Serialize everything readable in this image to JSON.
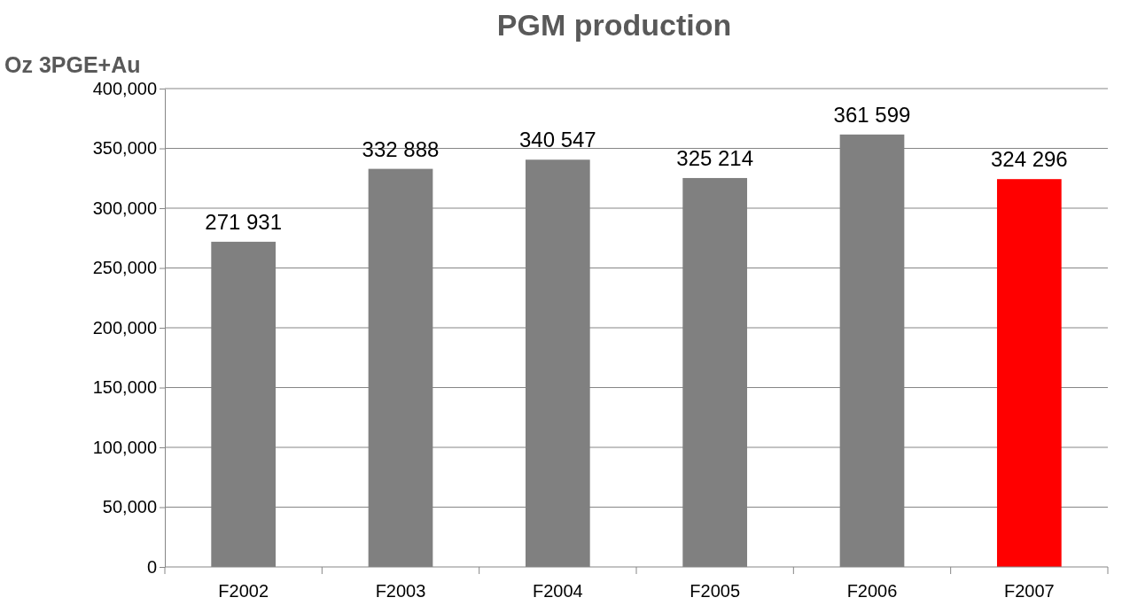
{
  "chart_data": {
    "type": "bar",
    "title": "PGM production",
    "ylabel": "Oz 3PGE+Au",
    "categories": [
      "F2002",
      "F2003",
      "F2004",
      "F2005",
      "F2006",
      "F2007"
    ],
    "values": [
      271931,
      332888,
      340547,
      325214,
      361599,
      324296
    ],
    "value_labels": [
      "271 931",
      "332 888",
      "340 547",
      "325 214",
      "361 599",
      "324 296"
    ],
    "colors": [
      "#808080",
      "#808080",
      "#808080",
      "#808080",
      "#808080",
      "#ff0000"
    ],
    "ylim": [
      0,
      400000
    ],
    "yticks": [
      {
        "value": 0,
        "label": "0"
      },
      {
        "value": 50000,
        "label": "50,000"
      },
      {
        "value": 100000,
        "label": "100,000"
      },
      {
        "value": 150000,
        "label": "150,000"
      },
      {
        "value": 200000,
        "label": "200,000"
      },
      {
        "value": 250000,
        "label": "250,000"
      },
      {
        "value": 300000,
        "label": "300,000"
      },
      {
        "value": 350000,
        "label": "350,000"
      },
      {
        "value": 400000,
        "label": "400,000"
      }
    ],
    "grid": "y"
  }
}
